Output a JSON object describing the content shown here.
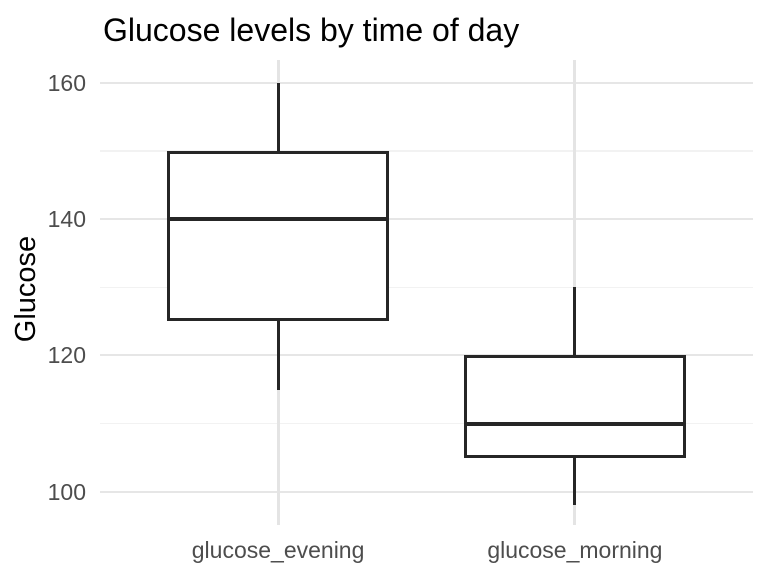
{
  "chart_data": {
    "type": "boxplot",
    "title": "Glucose levels by time of day",
    "xlabel": "",
    "ylabel": "Glucose",
    "categories": [
      "glucose_evening",
      "glucose_morning"
    ],
    "series": [
      {
        "name": "glucose_evening",
        "min": 115,
        "q1": 125,
        "median": 140,
        "q3": 150,
        "max": 160
      },
      {
        "name": "glucose_morning",
        "min": 98,
        "q1": 105,
        "median": 110,
        "q3": 120,
        "max": 130
      }
    ],
    "y_ticks_major": [
      100,
      120,
      140,
      160
    ],
    "y_ticks_minor": [
      110,
      130,
      150
    ],
    "ylim": [
      95.1,
      163.4
    ],
    "grid": true,
    "legend": "none",
    "box_width_fraction": 0.75,
    "colors": {
      "background": "#ffffff",
      "box_stroke": "#262626",
      "box_fill": "#ffffff",
      "grid_major": "#e6e6e6",
      "grid_minor": "#f2f2f2",
      "grid_vertical": "#e4e4e4",
      "title_text": "#000000",
      "axis_title_text": "#000000",
      "tick_text": "#4d4d4d"
    }
  }
}
